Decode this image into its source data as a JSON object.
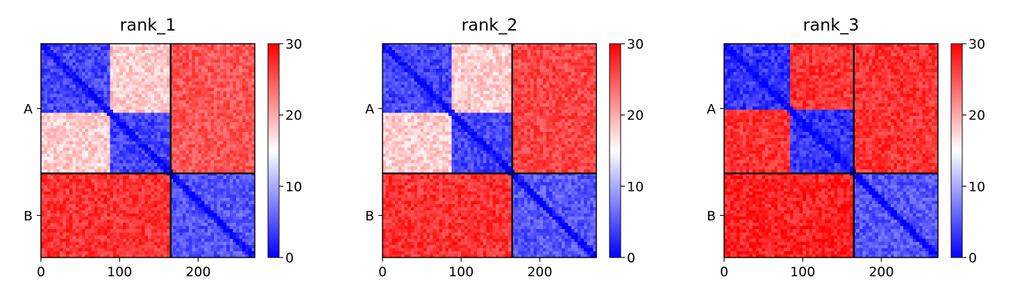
{
  "chart_data": [
    {
      "type": "heatmap",
      "title": "rank_1",
      "chains": [
        "A",
        "B"
      ],
      "chain_lengths": [
        165,
        107
      ],
      "x_ticks": [
        0,
        100,
        200
      ],
      "xlim": [
        0,
        272
      ],
      "colorbar": {
        "ticks": [
          0,
          10,
          20,
          30
        ],
        "range": [
          0,
          30
        ],
        "colormap": "bwr",
        "colors": [
          "#0000ff",
          "#ffffff",
          "#ff0000"
        ]
      },
      "blocks": {
        "A-A": {
          "domain_split": 87,
          "inter_domain_mean": 18,
          "intra_domain_mean": 4
        },
        "A-B": {
          "mean": 25
        },
        "B-A": {
          "mean": 27
        },
        "B-B": {
          "mean": 5
        }
      }
    },
    {
      "type": "heatmap",
      "title": "rank_2",
      "chains": [
        "A",
        "B"
      ],
      "chain_lengths": [
        165,
        107
      ],
      "x_ticks": [
        0,
        100,
        200
      ],
      "xlim": [
        0,
        272
      ],
      "colorbar": {
        "ticks": [
          0,
          10,
          20,
          30
        ],
        "range": [
          0,
          30
        ],
        "colormap": "bwr",
        "colors": [
          "#0000ff",
          "#ffffff",
          "#ff0000"
        ]
      },
      "blocks": {
        "A-A": {
          "domain_split": 87,
          "inter_domain_mean": 18,
          "intra_domain_mean": 4
        },
        "A-B": {
          "mean": 26
        },
        "B-A": {
          "mean": 27
        },
        "B-B": {
          "mean": 5
        }
      }
    },
    {
      "type": "heatmap",
      "title": "rank_3",
      "chains": [
        "A",
        "B"
      ],
      "chain_lengths": [
        165,
        107
      ],
      "x_ticks": [
        0,
        100,
        200
      ],
      "xlim": [
        0,
        272
      ],
      "colorbar": {
        "ticks": [
          0,
          10,
          20,
          30
        ],
        "range": [
          0,
          30
        ],
        "colormap": "bwr",
        "colors": [
          "#0000ff",
          "#ffffff",
          "#ff0000"
        ]
      },
      "blocks": {
        "A-A": {
          "domain_split": 85,
          "inter_domain_mean": 27,
          "intra_domain_mean": 3
        },
        "A-B": {
          "mean": 27
        },
        "B-A": {
          "mean": 28
        },
        "B-B": {
          "mean": 5
        }
      }
    }
  ]
}
